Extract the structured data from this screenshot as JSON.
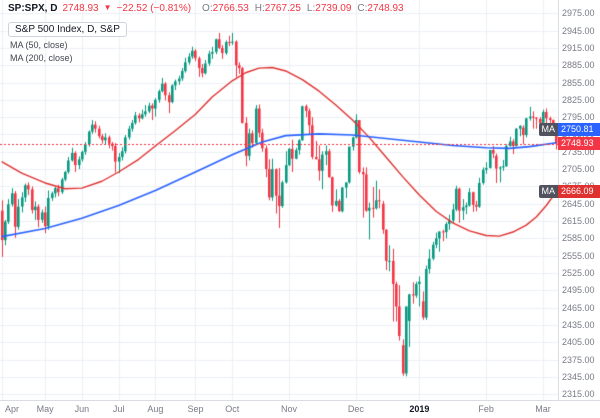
{
  "header": {
    "symbol": "SP:SPX, D",
    "last": "2748.93",
    "direction": "▼",
    "change": "−22.52 (−0.81%)",
    "ohlc": [
      {
        "label": "O:",
        "value": "2766.53"
      },
      {
        "label": "H:",
        "value": "2767.25"
      },
      {
        "label": "L:",
        "value": "2739.09"
      },
      {
        "label": "C:",
        "value": "2748.93"
      }
    ]
  },
  "legend": {
    "title": "S&P 500 Index, D, S&P",
    "indicators": [
      {
        "label": "MA (50, close)"
      },
      {
        "label": "MA (200, close)"
      }
    ]
  },
  "badges": {
    "ma200": {
      "prefix": "MA",
      "value": "2750.81"
    },
    "price": {
      "value": "2748.93"
    },
    "ma50": {
      "prefix": "MA",
      "value": "2666.09"
    }
  },
  "chart_data": {
    "type": "candlestick",
    "title": "S&P 500 Index",
    "timeframe": "D",
    "ylim": [
      2305,
      2998
    ],
    "price_line": 2748.93,
    "y_ticks": [
      2975,
      2945,
      2915,
      2885,
      2855,
      2825,
      2795,
      2765,
      2735,
      2705,
      2675,
      2645,
      2615,
      2585,
      2555,
      2525,
      2495,
      2465,
      2435,
      2405,
      2375,
      2345,
      2315
    ],
    "x_labels": [
      {
        "label": "Apr",
        "i": 0
      },
      {
        "label": "May",
        "i": 13
      },
      {
        "label": "Jun",
        "i": 24
      },
      {
        "label": "Jul",
        "i": 35
      },
      {
        "label": "Aug",
        "i": 46
      },
      {
        "label": "Sep",
        "i": 58
      },
      {
        "label": "Oct",
        "i": 69
      },
      {
        "label": "Nov",
        "i": 86
      },
      {
        "label": "Dec",
        "i": 106
      },
      {
        "label": "2019",
        "i": 125,
        "bold": true
      },
      {
        "label": "Feb",
        "i": 145
      },
      {
        "label": "Mar",
        "i": 162
      }
    ],
    "colors": {
      "up": "#089981",
      "down": "#f23645",
      "ma50": "#e03131",
      "ma200": "#2962ff",
      "grid": "#eef0f4",
      "axis_text": "#787b86"
    },
    "series": [
      {
        "name": "MA (50, close)",
        "type": "line",
        "waypoints": [
          [
            0,
            2718
          ],
          [
            6,
            2698
          ],
          [
            13,
            2681
          ],
          [
            19,
            2671
          ],
          [
            24,
            2672
          ],
          [
            30,
            2684
          ],
          [
            35,
            2700
          ],
          [
            41,
            2722
          ],
          [
            46,
            2745
          ],
          [
            52,
            2772
          ],
          [
            58,
            2800
          ],
          [
            63,
            2830
          ],
          [
            69,
            2858
          ],
          [
            73,
            2872
          ],
          [
            77,
            2880
          ],
          [
            81,
            2881
          ],
          [
            85,
            2875
          ],
          [
            90,
            2860
          ],
          [
            95,
            2840
          ],
          [
            100,
            2816
          ],
          [
            105,
            2790
          ],
          [
            110,
            2760
          ],
          [
            115,
            2726
          ],
          [
            120,
            2692
          ],
          [
            125,
            2660
          ],
          [
            130,
            2632
          ],
          [
            135,
            2612
          ],
          [
            140,
            2598
          ],
          [
            145,
            2590
          ],
          [
            149,
            2589
          ],
          [
            153,
            2596
          ],
          [
            157,
            2608
          ],
          [
            160,
            2622
          ],
          [
            163,
            2642
          ],
          [
            166,
            2666.09
          ]
        ]
      },
      {
        "name": "MA (200, close)",
        "type": "line",
        "waypoints": [
          [
            0,
            2588
          ],
          [
            13,
            2602
          ],
          [
            24,
            2620
          ],
          [
            35,
            2642
          ],
          [
            46,
            2668
          ],
          [
            58,
            2700
          ],
          [
            69,
            2730
          ],
          [
            78,
            2752
          ],
          [
            85,
            2763
          ],
          [
            95,
            2766
          ],
          [
            105,
            2764
          ],
          [
            115,
            2758
          ],
          [
            125,
            2752
          ],
          [
            135,
            2746
          ],
          [
            145,
            2742
          ],
          [
            152,
            2741
          ],
          [
            158,
            2744
          ],
          [
            166,
            2750.81
          ]
        ]
      }
    ],
    "ohlc": [
      [
        2633,
        2651,
        2553,
        2582
      ],
      [
        2582,
        2617,
        2573,
        2614
      ],
      [
        2614,
        2653,
        2610,
        2644
      ],
      [
        2644,
        2672,
        2640,
        2663
      ],
      [
        2663,
        2667,
        2586,
        2605
      ],
      [
        2605,
        2653,
        2600,
        2640
      ],
      [
        2640,
        2665,
        2630,
        2656
      ],
      [
        2656,
        2680,
        2648,
        2677
      ],
      [
        2677,
        2682,
        2660,
        2670
      ],
      [
        2670,
        2675,
        2628,
        2634
      ],
      [
        2634,
        2649,
        2617,
        2640
      ],
      [
        2640,
        2644,
        2604,
        2617
      ],
      [
        2617,
        2635,
        2612,
        2630
      ],
      [
        2630,
        2640,
        2594,
        2606
      ],
      [
        2606,
        2668,
        2600,
        2655
      ],
      [
        2655,
        2666,
        2650,
        2663
      ],
      [
        2663,
        2674,
        2656,
        2672
      ],
      [
        2672,
        2678,
        2658,
        2665
      ],
      [
        2665,
        2690,
        2662,
        2687
      ],
      [
        2687,
        2702,
        2684,
        2700
      ],
      [
        2700,
        2726,
        2697,
        2720
      ],
      [
        2720,
        2742,
        2718,
        2733
      ],
      [
        2733,
        2736,
        2700,
        2712
      ],
      [
        2712,
        2727,
        2705,
        2722
      ],
      [
        2722,
        2737,
        2718,
        2735
      ],
      [
        2735,
        2752,
        2730,
        2748
      ],
      [
        2748,
        2772,
        2744,
        2770
      ],
      [
        2770,
        2790,
        2766,
        2782
      ],
      [
        2782,
        2788,
        2768,
        2775
      ],
      [
        2775,
        2780,
        2758,
        2762
      ],
      [
        2762,
        2766,
        2749,
        2755
      ],
      [
        2755,
        2767,
        2747,
        2760
      ],
      [
        2760,
        2763,
        2741,
        2749
      ],
      [
        2749,
        2752,
        2737,
        2745
      ],
      [
        2745,
        2750,
        2699,
        2718
      ],
      [
        2718,
        2733,
        2698,
        2726
      ],
      [
        2726,
        2743,
        2720,
        2736
      ],
      [
        2736,
        2764,
        2732,
        2760
      ],
      [
        2760,
        2780,
        2756,
        2775
      ],
      [
        2775,
        2790,
        2770,
        2785
      ],
      [
        2785,
        2804,
        2782,
        2798
      ],
      [
        2798,
        2802,
        2786,
        2793
      ],
      [
        2793,
        2808,
        2791,
        2800
      ],
      [
        2800,
        2816,
        2796,
        2805
      ],
      [
        2805,
        2820,
        2802,
        2815
      ],
      [
        2815,
        2819,
        2790,
        2810
      ],
      [
        2810,
        2828,
        2796,
        2825
      ],
      [
        2825,
        2843,
        2820,
        2840
      ],
      [
        2840,
        2863,
        2838,
        2853
      ],
      [
        2853,
        2856,
        2824,
        2833
      ],
      [
        2833,
        2838,
        2802,
        2821
      ],
      [
        2821,
        2852,
        2819,
        2850
      ],
      [
        2850,
        2860,
        2842,
        2857
      ],
      [
        2857,
        2867,
        2851,
        2862
      ],
      [
        2862,
        2880,
        2858,
        2875
      ],
      [
        2875,
        2898,
        2872,
        2890
      ],
      [
        2890,
        2906,
        2886,
        2900
      ],
      [
        2900,
        2917,
        2896,
        2910
      ],
      [
        2910,
        2913,
        2892,
        2897
      ],
      [
        2897,
        2900,
        2865,
        2880
      ],
      [
        2880,
        2887,
        2864,
        2871
      ],
      [
        2871,
        2894,
        2869,
        2888
      ],
      [
        2888,
        2910,
        2884,
        2905
      ],
      [
        2905,
        2917,
        2896,
        2908
      ],
      [
        2908,
        2931,
        2904,
        2930
      ],
      [
        2930,
        2941,
        2913,
        2915
      ],
      [
        2915,
        2920,
        2896,
        2906
      ],
      [
        2906,
        2928,
        2903,
        2925
      ],
      [
        2925,
        2936,
        2918,
        2924
      ],
      [
        2924,
        2941,
        2920,
        2926
      ],
      [
        2926,
        2928,
        2864,
        2885
      ],
      [
        2885,
        2890,
        2870,
        2880
      ],
      [
        2880,
        2882,
        2784,
        2785
      ],
      [
        2785,
        2795,
        2710,
        2728
      ],
      [
        2728,
        2775,
        2720,
        2767
      ],
      [
        2767,
        2772,
        2742,
        2750
      ],
      [
        2750,
        2816,
        2748,
        2810
      ],
      [
        2810,
        2817,
        2760,
        2768
      ],
      [
        2768,
        2775,
        2735,
        2741
      ],
      [
        2741,
        2746,
        2691,
        2705
      ],
      [
        2705,
        2722,
        2651,
        2656
      ],
      [
        2656,
        2723,
        2650,
        2705
      ],
      [
        2705,
        2706,
        2628,
        2659
      ],
      [
        2659,
        2707,
        2603,
        2641
      ],
      [
        2641,
        2685,
        2638,
        2682
      ],
      [
        2682,
        2736,
        2680,
        2712
      ],
      [
        2712,
        2742,
        2710,
        2740
      ],
      [
        2740,
        2756,
        2700,
        2723
      ],
      [
        2723,
        2742,
        2722,
        2738
      ],
      [
        2738,
        2757,
        2730,
        2755
      ],
      [
        2755,
        2815,
        2754,
        2814
      ],
      [
        2814,
        2817,
        2795,
        2806
      ],
      [
        2806,
        2810,
        2764,
        2781
      ],
      [
        2781,
        2795,
        2722,
        2726
      ],
      [
        2726,
        2754,
        2722,
        2722
      ],
      [
        2722,
        2746,
        2685,
        2702
      ],
      [
        2702,
        2736,
        2670,
        2730
      ],
      [
        2730,
        2746,
        2712,
        2736
      ],
      [
        2736,
        2740,
        2690,
        2691
      ],
      [
        2691,
        2692,
        2631,
        2642
      ],
      [
        2642,
        2670,
        2640,
        2650
      ],
      [
        2650,
        2653,
        2631,
        2632
      ],
      [
        2632,
        2674,
        2630,
        2673
      ],
      [
        2673,
        2682,
        2655,
        2682
      ],
      [
        2682,
        2744,
        2680,
        2744
      ],
      [
        2744,
        2761,
        2737,
        2760
      ],
      [
        2760,
        2800,
        2758,
        2790
      ],
      [
        2790,
        2790,
        2697,
        2700
      ],
      [
        2700,
        2708,
        2621,
        2696
      ],
      [
        2696,
        2708,
        2631,
        2633
      ],
      [
        2633,
        2647,
        2583,
        2638
      ],
      [
        2638,
        2674,
        2621,
        2637
      ],
      [
        2637,
        2685,
        2635,
        2651
      ],
      [
        2651,
        2670,
        2637,
        2650
      ],
      [
        2645,
        2650,
        2593,
        2600
      ],
      [
        2600,
        2601,
        2530,
        2546
      ],
      [
        2546,
        2573,
        2528,
        2546
      ],
      [
        2546,
        2567,
        2441,
        2506
      ],
      [
        2506,
        2510,
        2441,
        2467
      ],
      [
        2467,
        2504,
        2408,
        2416
      ],
      [
        2400,
        2410,
        2347,
        2351
      ],
      [
        2351,
        2467,
        2346,
        2467
      ],
      [
        2442,
        2489,
        2397,
        2488
      ],
      [
        2488,
        2509,
        2472,
        2486
      ],
      [
        2486,
        2510,
        2482,
        2506
      ],
      [
        2506,
        2519,
        2467,
        2510
      ],
      [
        2476,
        2493,
        2444,
        2448
      ],
      [
        2448,
        2538,
        2444,
        2532
      ],
      [
        2532,
        2566,
        2524,
        2550
      ],
      [
        2550,
        2579,
        2547,
        2574
      ],
      [
        2574,
        2595,
        2568,
        2585
      ],
      [
        2585,
        2597,
        2562,
        2597
      ],
      [
        2597,
        2600,
        2580,
        2596
      ],
      [
        2596,
        2613,
        2585,
        2610
      ],
      [
        2610,
        2626,
        2600,
        2616
      ],
      [
        2616,
        2645,
        2612,
        2635
      ],
      [
        2635,
        2676,
        2632,
        2671
      ],
      [
        2671,
        2673,
        2612,
        2633
      ],
      [
        2633,
        2653,
        2617,
        2639
      ],
      [
        2639,
        2647,
        2627,
        2642
      ],
      [
        2642,
        2672,
        2640,
        2665
      ],
      [
        2665,
        2666,
        2631,
        2643
      ],
      [
        2643,
        2650,
        2632,
        2640
      ],
      [
        2640,
        2690,
        2638,
        2681
      ],
      [
        2681,
        2708,
        2678,
        2704
      ],
      [
        2704,
        2717,
        2697,
        2707
      ],
      [
        2707,
        2738,
        2706,
        2738
      ],
      [
        2738,
        2745,
        2724,
        2732
      ],
      [
        2728,
        2732,
        2681,
        2706
      ],
      [
        2706,
        2710,
        2682,
        2708
      ],
      [
        2708,
        2721,
        2702,
        2710
      ],
      [
        2710,
        2748,
        2709,
        2745
      ],
      [
        2745,
        2761,
        2744,
        2753
      ],
      [
        2753,
        2757,
        2731,
        2745
      ],
      [
        2745,
        2776,
        2744,
        2775
      ],
      [
        2775,
        2781,
        2762,
        2780
      ],
      [
        2777,
        2781,
        2748,
        2764
      ],
      [
        2764,
        2794,
        2760,
        2793
      ],
      [
        2793,
        2813,
        2789,
        2796
      ],
      [
        2796,
        2805,
        2775,
        2794
      ],
      [
        2794,
        2795,
        2775,
        2792
      ],
      [
        2792,
        2795,
        2779,
        2784
      ],
      [
        2784,
        2808,
        2779,
        2804
      ],
      [
        2804,
        2810,
        2767,
        2793
      ],
      [
        2793,
        2796,
        2782,
        2790
      ],
      [
        2790,
        2791,
        2768,
        2771
      ],
      [
        2766.53,
        2767.25,
        2739.09,
        2748.93
      ]
    ]
  }
}
